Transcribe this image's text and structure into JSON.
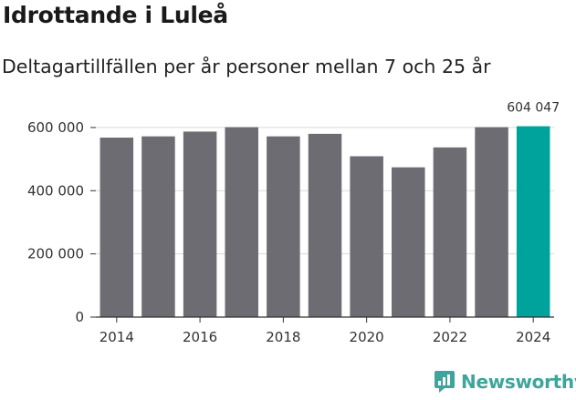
{
  "header": {
    "title": "Idrottande i Luleå",
    "subtitle": "Deltagartillfällen per år personer mellan 7 och 25 år"
  },
  "brand": {
    "name": "Newsworthy"
  },
  "colors": {
    "bar": "#6d6c73",
    "highlight": "#00a39b",
    "grid": "#d9d9d9",
    "axis": "#333333",
    "brand": "#3fa59c"
  },
  "chart_data": {
    "type": "bar",
    "title": "Idrottande i Luleå",
    "subtitle": "Deltagartillfällen per år personer mellan 7 och 25 år",
    "categories": [
      "2014",
      "2015",
      "2016",
      "2017",
      "2018",
      "2019",
      "2020",
      "2021",
      "2022",
      "2023",
      "2024"
    ],
    "values": [
      568000,
      572000,
      587000,
      601000,
      572000,
      580000,
      509000,
      474000,
      537000,
      601000,
      604047
    ],
    "highlight_index": 10,
    "ylim": [
      0,
      620000
    ],
    "yticks": [
      0,
      200000,
      400000,
      600000
    ],
    "ytick_labels": [
      "0",
      "200 000",
      "400 000",
      "600 000"
    ],
    "xtick_labels": [
      "2014",
      "2016",
      "2018",
      "2020",
      "2022",
      "2024"
    ],
    "data_labels": [
      {
        "index": 10,
        "text": "604 047"
      }
    ],
    "xlabel": "",
    "ylabel": "",
    "grid": true
  }
}
